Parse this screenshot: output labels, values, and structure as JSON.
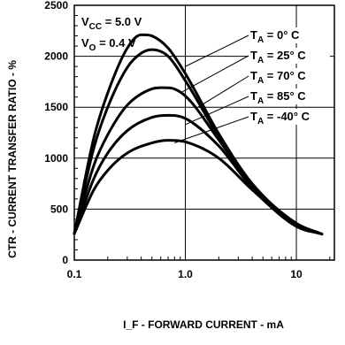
{
  "chart_data": {
    "type": "line",
    "conditions": [
      "V_CC = 5.0 V",
      "V_O = 0.4 V"
    ],
    "xlabel": "I_F - FORWARD CURRENT - mA",
    "ylabel": "CTR - CURRENT TRANSFER RATIO - %",
    "xscale": "log",
    "xlim": [
      0.1,
      22
    ],
    "ylim": [
      0,
      2500
    ],
    "x_ticks": [
      "0.1",
      "1.0",
      "10"
    ],
    "y_ticks": [
      "0",
      "500",
      "1000",
      "1500",
      "2000",
      "2500"
    ],
    "grid": true,
    "series": [
      {
        "name": "T_A = 0° C",
        "x": [
          0.1,
          0.15,
          0.2,
          0.3,
          0.4,
          0.5,
          0.7,
          1.0,
          2.0,
          4.0,
          10,
          17
        ],
        "values": [
          260,
          1200,
          1640,
          2080,
          2210,
          2200,
          2080,
          1830,
          1240,
          750,
          360,
          255
        ]
      },
      {
        "name": "T_A = 25° C",
        "x": [
          0.1,
          0.15,
          0.2,
          0.3,
          0.4,
          0.5,
          0.7,
          1.0,
          2.0,
          4.0,
          10,
          17
        ],
        "values": [
          260,
          1100,
          1500,
          1890,
          2030,
          2065,
          2000,
          1760,
          1210,
          740,
          360,
          255
        ]
      },
      {
        "name": "T_A = 70° C",
        "x": [
          0.1,
          0.15,
          0.2,
          0.3,
          0.5,
          0.7,
          1.0,
          2.0,
          4.0,
          10,
          17
        ],
        "values": [
          260,
          930,
          1230,
          1520,
          1680,
          1690,
          1610,
          1180,
          730,
          350,
          255
        ]
      },
      {
        "name": "T_A = 85° C",
        "x": [
          0.1,
          0.15,
          0.2,
          0.3,
          0.5,
          0.7,
          1.0,
          2.0,
          4.0,
          10,
          17
        ],
        "values": [
          260,
          800,
          1050,
          1270,
          1400,
          1420,
          1390,
          1120,
          710,
          340,
          255
        ]
      },
      {
        "name": "T_A = -40° C",
        "x": [
          0.1,
          0.15,
          0.2,
          0.3,
          0.5,
          0.7,
          1.0,
          2.0,
          4.0,
          10,
          17
        ],
        "values": [
          260,
          690,
          880,
          1050,
          1150,
          1175,
          1160,
          1000,
          690,
          330,
          255
        ]
      }
    ]
  }
}
